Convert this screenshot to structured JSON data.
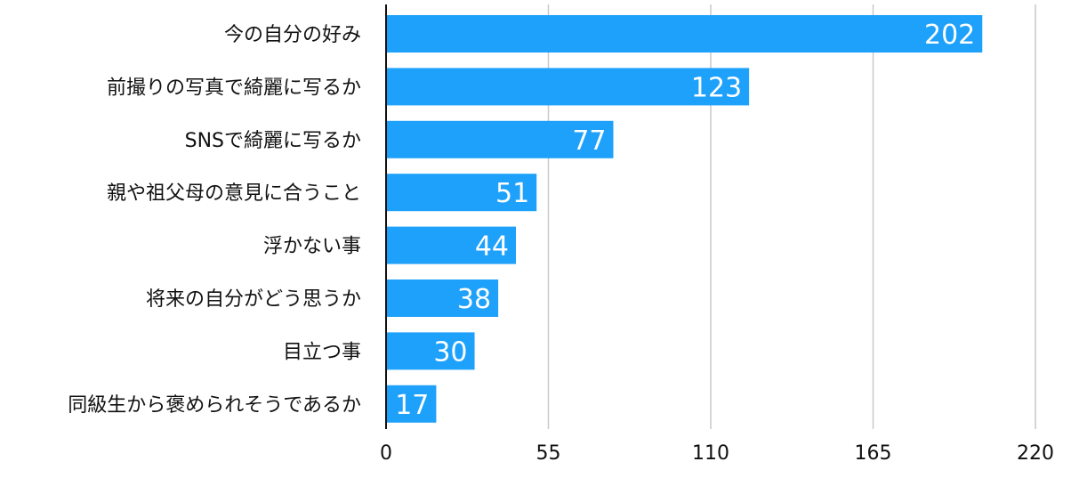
{
  "chart_data": {
    "type": "bar",
    "orientation": "horizontal",
    "categories": [
      "今の自分の好み",
      "前撮りの写真で綺麗に写るか",
      "SNSで綺麗に写るか",
      "親や祖父母の意見に合うこと",
      "浮かない事",
      "将来の自分がどう思うか",
      "目立つ事",
      "同級生から褒められそうであるか"
    ],
    "values": [
      202,
      123,
      77,
      51,
      44,
      38,
      30,
      17
    ],
    "xlim": [
      0,
      220
    ],
    "xticks": [
      0,
      55,
      110,
      165,
      220
    ],
    "grid": true,
    "bar_color": "#1ea1fb",
    "data_labels": true
  }
}
